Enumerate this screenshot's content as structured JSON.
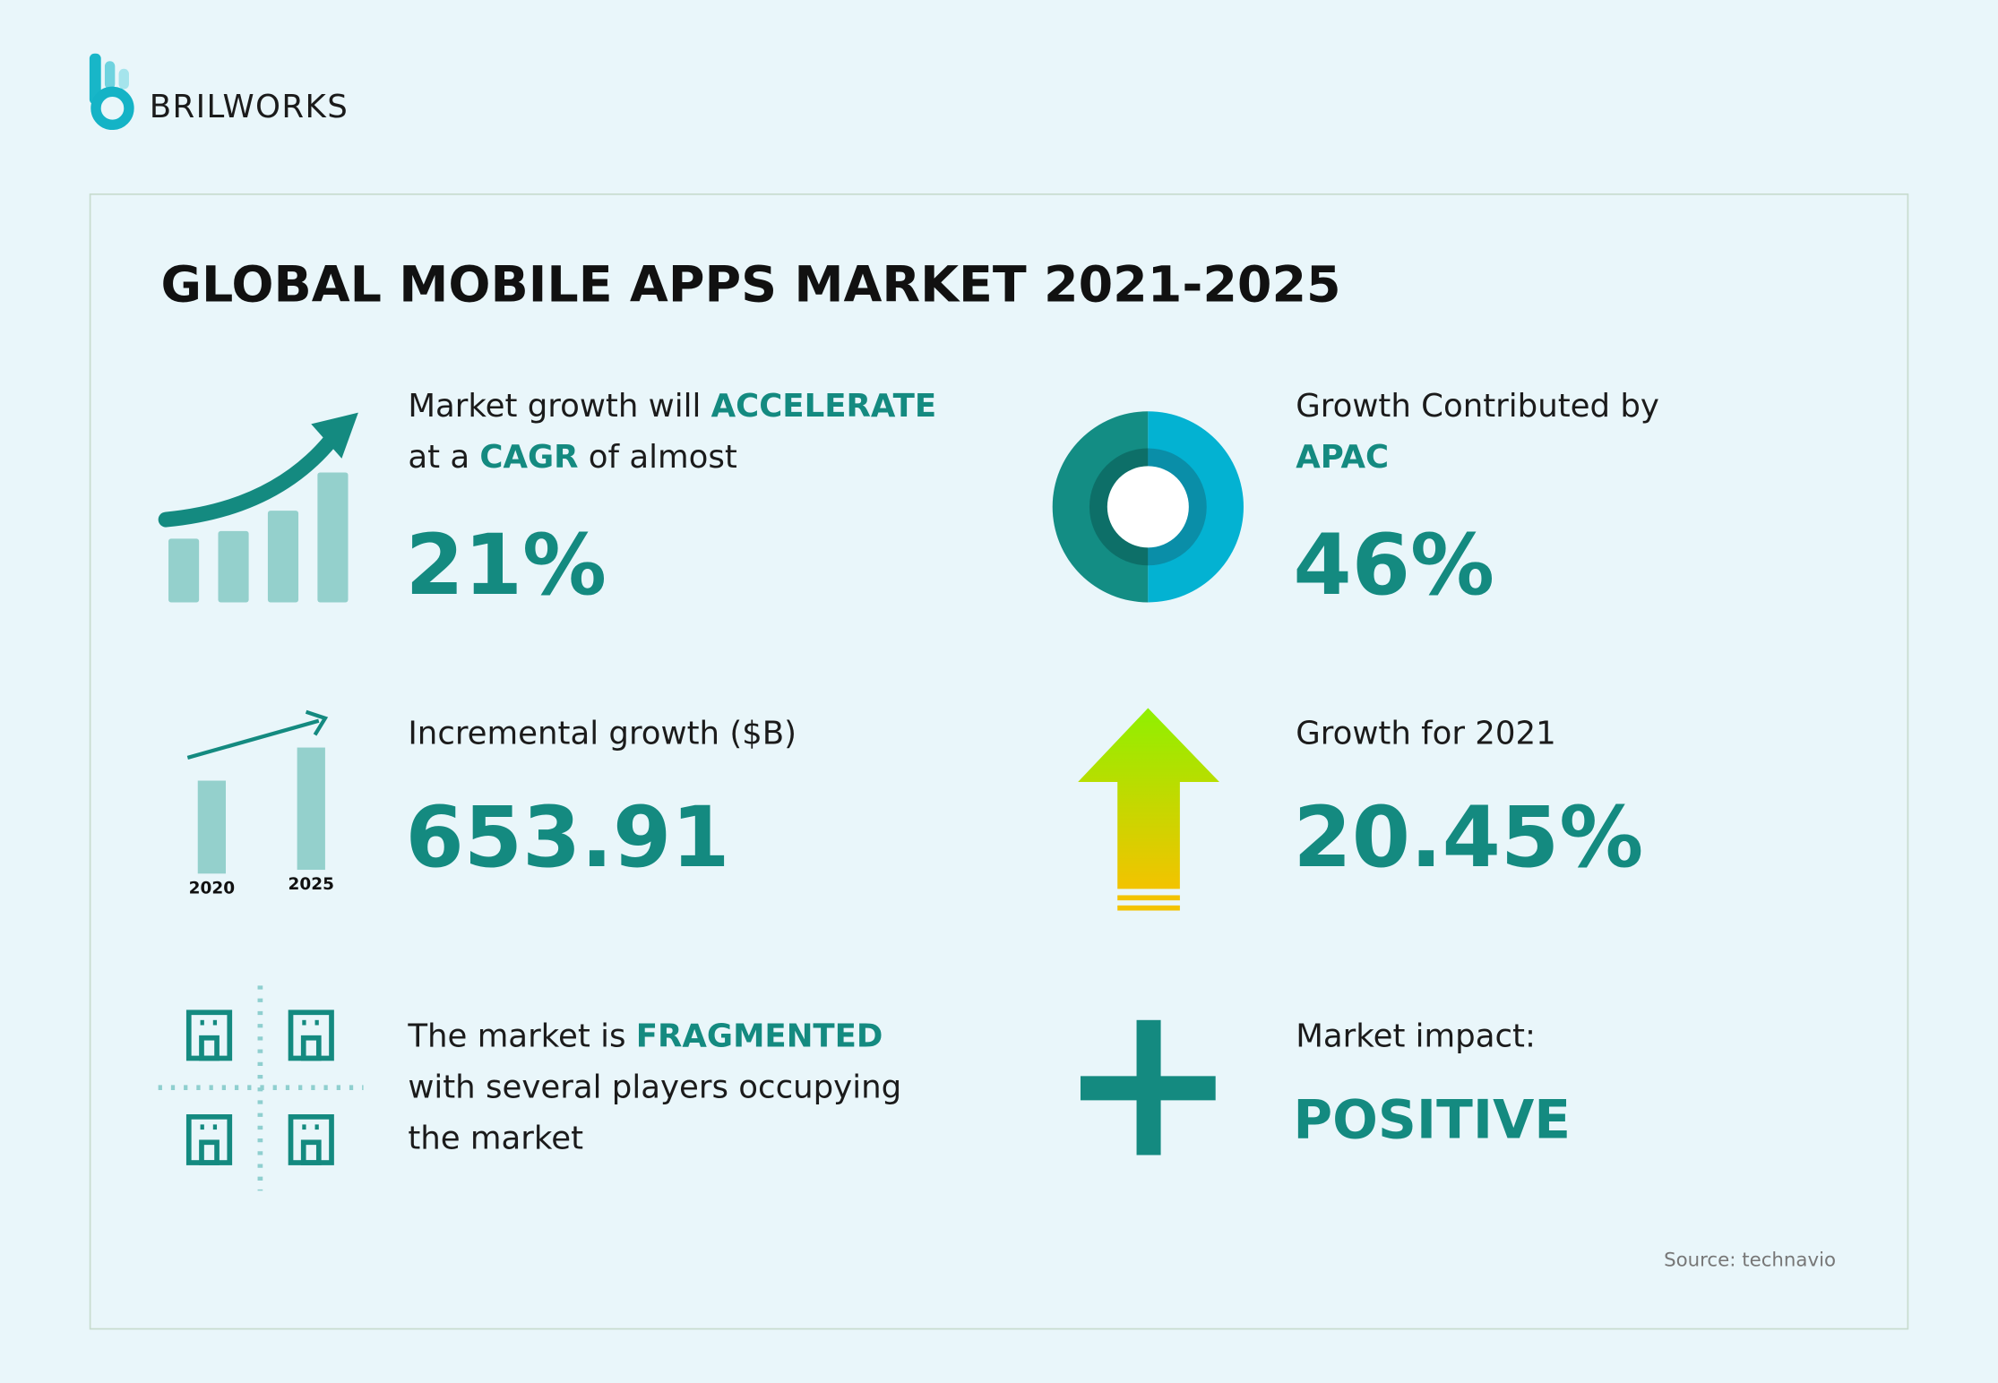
{
  "brand": "BRILWORKS",
  "title": "GLOBAL MOBILE APPS MARKET 2021-2025",
  "stats": [
    {
      "lines": [
        [
          {
            "text": "Market growth will "
          },
          {
            "text": "ACCELERATE",
            "emphasis": true
          }
        ],
        [
          {
            "text": "at a "
          },
          {
            "text": "CAGR",
            "emphasis": true
          },
          {
            "text": " of almost"
          }
        ]
      ],
      "value": "21%"
    },
    {
      "lines": [
        [
          {
            "text": "Growth Contributed by"
          }
        ],
        [
          {
            "text": "APAC",
            "emphasis": true
          }
        ]
      ],
      "value": "46%"
    },
    {
      "lines": [
        [
          {
            "text": "Incremental growth ($B)"
          }
        ]
      ],
      "value": "653.91",
      "icon_labels": [
        "2020",
        "2025"
      ]
    },
    {
      "lines": [
        [
          {
            "text": "Growth for 2021"
          }
        ]
      ],
      "value": "20.45%"
    },
    {
      "lines": [
        [
          {
            "text": "The market is "
          },
          {
            "text": "FRAGMENTED",
            "emphasis": true
          }
        ],
        [
          {
            "text": "with several players occupying"
          }
        ],
        [
          {
            "text": "the market"
          }
        ]
      ]
    },
    {
      "lines": [
        [
          {
            "text": "Market impact:"
          }
        ]
      ],
      "value": "POSITIVE"
    }
  ],
  "source": "Source: technavio"
}
